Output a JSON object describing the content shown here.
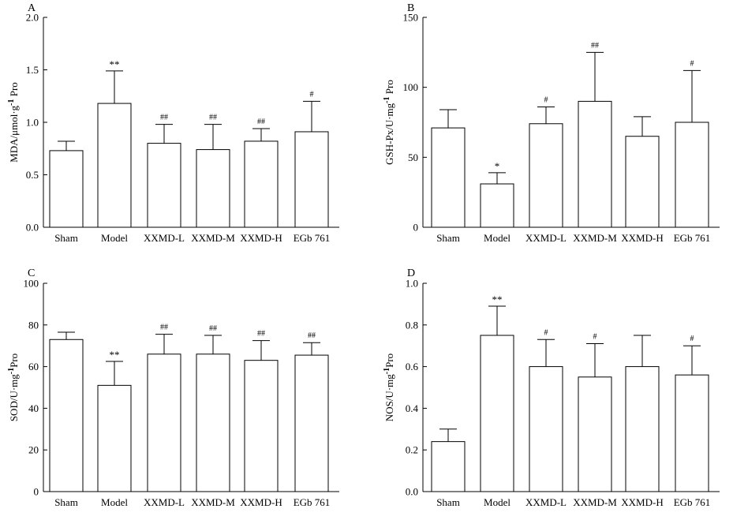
{
  "chart_data": [
    {
      "panel": "A",
      "type": "bar",
      "categories": [
        "Sham",
        "Model",
        "XXMD-L",
        "XXMD-M",
        "XXMD-H",
        "EGb 761"
      ],
      "values": [
        0.73,
        1.18,
        0.8,
        0.74,
        0.82,
        0.91
      ],
      "errors": [
        0.09,
        0.31,
        0.18,
        0.24,
        0.12,
        0.29
      ],
      "annotations": [
        "",
        "**",
        "##",
        "##",
        "##",
        "#"
      ],
      "ylabel": {
        "main": "MDA/μmol·g",
        "sup": "-1",
        "tail": " Pro"
      },
      "ylim": [
        0,
        2.0
      ],
      "yticks": [
        "0.0",
        "0.5",
        "1.0",
        "1.5",
        "2.0"
      ],
      "ytick_values": [
        0,
        0.5,
        1.0,
        1.5,
        2.0
      ]
    },
    {
      "panel": "B",
      "type": "bar",
      "categories": [
        "Sham",
        "Model",
        "XXMD-L",
        "XXMD-M",
        "XXMD-H",
        "EGb 761"
      ],
      "values": [
        71,
        31,
        74,
        90,
        65,
        75
      ],
      "errors": [
        13,
        8,
        12,
        35,
        14,
        37
      ],
      "annotations": [
        "",
        "*",
        "#",
        "##",
        "",
        "#"
      ],
      "ylabel": {
        "main": "GSH-Px/U·mg",
        "sup": "-1",
        "tail": " Pro"
      },
      "ylim": [
        0,
        150
      ],
      "yticks": [
        "0",
        "50",
        "100",
        "150"
      ],
      "ytick_values": [
        0,
        50,
        100,
        150
      ]
    },
    {
      "panel": "C",
      "type": "bar",
      "categories": [
        "Sham",
        "Model",
        "XXMD-L",
        "XXMD-M",
        "XXMD-H",
        "EGb 761"
      ],
      "values": [
        73,
        51,
        66,
        66,
        63,
        65.5
      ],
      "errors": [
        3.5,
        11.5,
        9.5,
        9,
        9.5,
        6
      ],
      "annotations": [
        "",
        "**",
        "##",
        "##",
        "##",
        "##"
      ],
      "ylabel": {
        "main": "SOD/U·mg",
        "sup": "-1",
        "tail": "Pro"
      },
      "ylim": [
        0,
        100
      ],
      "yticks": [
        "0",
        "20",
        "40",
        "60",
        "80",
        "100"
      ],
      "ytick_values": [
        0,
        20,
        40,
        60,
        80,
        100
      ]
    },
    {
      "panel": "D",
      "type": "bar",
      "categories": [
        "Sham",
        "Model",
        "XXMD-L",
        "XXMD-M",
        "XXMD-H",
        "EGb 761"
      ],
      "values": [
        0.24,
        0.75,
        0.6,
        0.55,
        0.6,
        0.56
      ],
      "errors": [
        0.06,
        0.14,
        0.13,
        0.16,
        0.15,
        0.14
      ],
      "annotations": [
        "",
        "**",
        "#",
        "#",
        "",
        "#"
      ],
      "ylabel": {
        "main": "NOS/U·mg",
        "sup": "-1",
        "tail": "Pro"
      },
      "ylim": [
        0,
        1.0
      ],
      "yticks": [
        "0.0",
        "0.2",
        "0.4",
        "0.6",
        "0.8",
        "1.0"
      ],
      "ytick_values": [
        0,
        0.2,
        0.4,
        0.6,
        0.8,
        1.0
      ]
    }
  ]
}
